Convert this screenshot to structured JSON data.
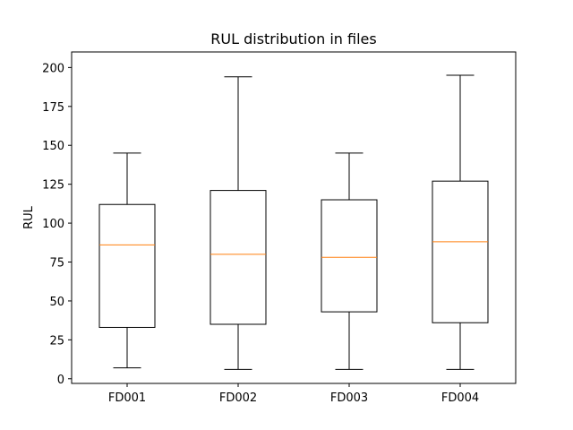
{
  "chart_data": {
    "type": "box",
    "title": "RUL distribution in files",
    "xlabel": "",
    "ylabel": "RUL",
    "ylim": [
      -3,
      210
    ],
    "yticks": [
      0,
      25,
      50,
      75,
      100,
      125,
      150,
      175,
      200
    ],
    "grid": false,
    "categories": [
      "FD001",
      "FD002",
      "FD003",
      "FD004"
    ],
    "boxes": [
      {
        "category": "FD001",
        "whisker_low": 7,
        "q1": 33,
        "median": 86,
        "q3": 112,
        "whisker_high": 145
      },
      {
        "category": "FD002",
        "whisker_low": 6,
        "q1": 35,
        "median": 80,
        "q3": 121,
        "whisker_high": 194
      },
      {
        "category": "FD003",
        "whisker_low": 6,
        "q1": 43,
        "median": 78,
        "q3": 115,
        "whisker_high": 145
      },
      {
        "category": "FD004",
        "whisker_low": 6,
        "q1": 36,
        "median": 88,
        "q3": 127,
        "whisker_high": 195
      }
    ],
    "colors": {
      "box": "#000000",
      "median": "#ff7f0e"
    }
  }
}
